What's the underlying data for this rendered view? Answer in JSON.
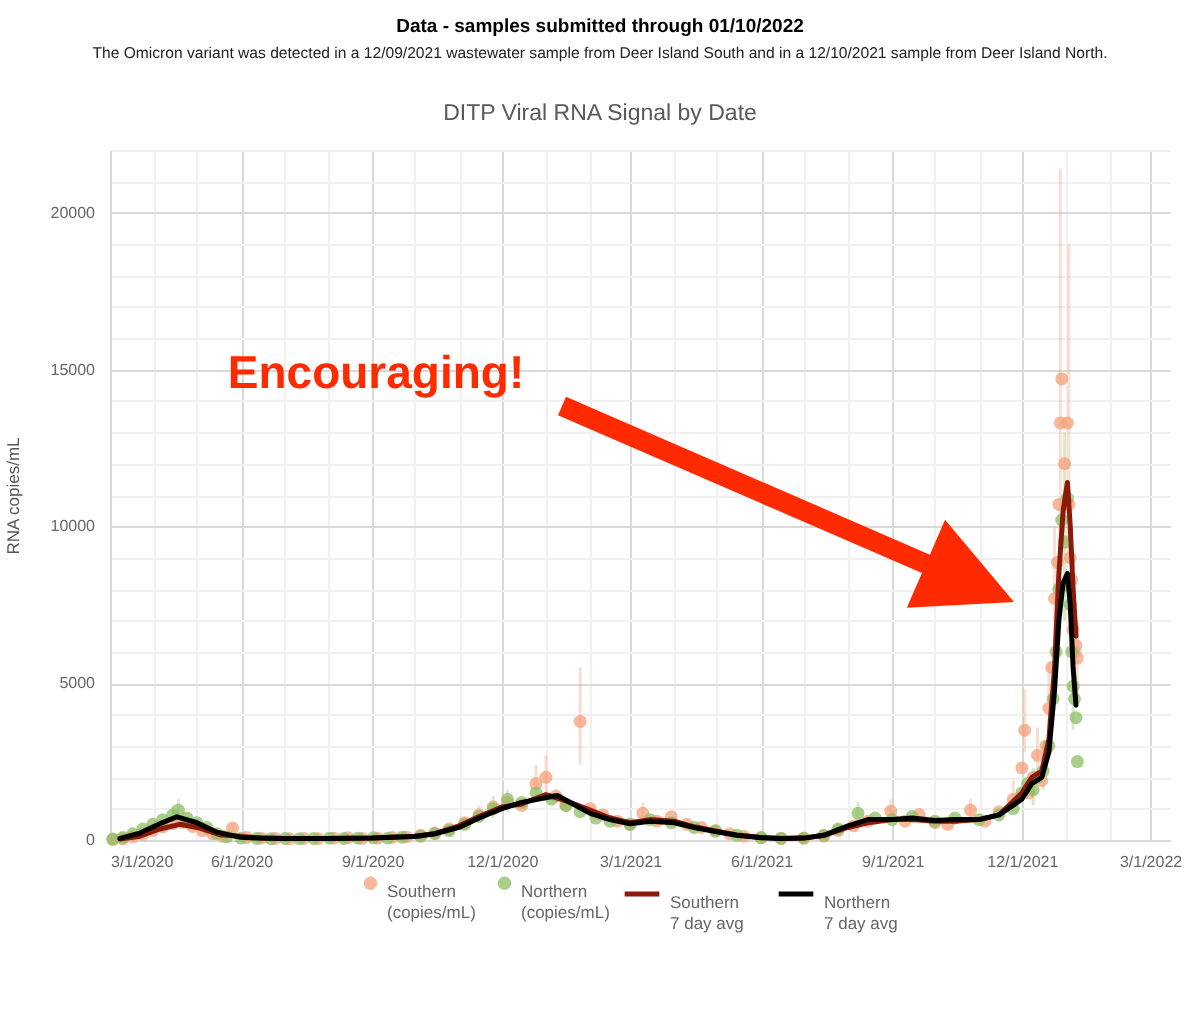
{
  "chart_data": {
    "type": "scatter",
    "title": "DITP Viral RNA Signal by Date",
    "ylabel": "RNA copies/mL",
    "annotations": [
      "Data - samples submitted through 01/10/2022",
      "The Omicron variant was detected in a 12/09/2021 wastewater sample from Deer Island South and in a 12/10/2021 sample from Deer Island North.",
      "Encouraging!"
    ],
    "xlim": [
      "2020-03-01",
      "2022-03-15"
    ],
    "xticks": [
      {
        "value": "2020-03-01",
        "label": "3/1/2020"
      },
      {
        "value": "2020-04-01",
        "label": null
      },
      {
        "value": "2020-05-01",
        "label": null
      },
      {
        "value": "2020-06-01",
        "label": "6/1/2020"
      },
      {
        "value": "2020-07-01",
        "label": null
      },
      {
        "value": "2020-08-01",
        "label": null
      },
      {
        "value": "2020-09-01",
        "label": "9/1/2020"
      },
      {
        "value": "2020-10-01",
        "label": null
      },
      {
        "value": "2020-11-01",
        "label": null
      },
      {
        "value": "2020-12-01",
        "label": "12/1/2020"
      },
      {
        "value": "2021-01-01",
        "label": null
      },
      {
        "value": "2021-02-01",
        "label": null
      },
      {
        "value": "2021-03-01",
        "label": "3/1/2021"
      },
      {
        "value": "2021-04-01",
        "label": null
      },
      {
        "value": "2021-05-01",
        "label": null
      },
      {
        "value": "2021-06-01",
        "label": "6/1/2021"
      },
      {
        "value": "2021-07-01",
        "label": null
      },
      {
        "value": "2021-08-01",
        "label": null
      },
      {
        "value": "2021-09-01",
        "label": "9/1/2021"
      },
      {
        "value": "2021-10-01",
        "label": null
      },
      {
        "value": "2021-11-01",
        "label": null
      },
      {
        "value": "2021-12-01",
        "label": "12/1/2021"
      },
      {
        "value": "2022-01-01",
        "label": null
      },
      {
        "value": "2022-02-01",
        "label": null
      },
      {
        "value": "2022-03-01",
        "label": "3/1/2022"
      }
    ],
    "ylim": [
      0,
      22000
    ],
    "yticks": [
      0,
      {
        "value": 1000,
        "label": null
      },
      {
        "value": 2000,
        "label": null
      },
      {
        "value": 3000,
        "label": null
      },
      {
        "value": 4000,
        "label": null
      },
      5000,
      {
        "value": 6000,
        "label": null
      },
      {
        "value": 7000,
        "label": null
      },
      {
        "value": 8000,
        "label": null
      },
      {
        "value": 9000,
        "label": null
      },
      10000,
      {
        "value": 11000,
        "label": null
      },
      {
        "value": 12000,
        "label": null
      },
      {
        "value": 13000,
        "label": null
      },
      {
        "value": 14000,
        "label": null
      },
      15000,
      {
        "value": 16000,
        "label": null
      },
      {
        "value": 17000,
        "label": null
      },
      {
        "value": 18000,
        "label": null
      },
      {
        "value": 19000,
        "label": null
      },
      20000,
      {
        "value": 21000,
        "label": null
      },
      {
        "value": 22000,
        "label": null
      }
    ],
    "grid": true,
    "legend": "bottom",
    "marker": "circle",
    "line_style": "solid",
    "series": [
      {
        "name": "Southern (copies/mL)",
        "color": "#f4a07a",
        "x": [
          "2020-03-03",
          "2020-03-10",
          "2020-03-17",
          "2020-03-24",
          "2020-03-31",
          "2020-04-07",
          "2020-04-14",
          "2020-04-21",
          "2020-04-28",
          "2020-05-05",
          "2020-05-12",
          "2020-05-19",
          "2020-05-26",
          "2020-06-05",
          "2020-06-15",
          "2020-06-25",
          "2020-07-05",
          "2020-07-15",
          "2020-07-25",
          "2020-08-05",
          "2020-08-15",
          "2020-08-25",
          "2020-09-05",
          "2020-09-15",
          "2020-09-25",
          "2020-10-05",
          "2020-10-15",
          "2020-10-25",
          "2020-11-05",
          "2020-11-15",
          "2020-11-25",
          "2020-12-05",
          "2020-12-15",
          "2020-12-25",
          "2021-01-01",
          "2021-01-08",
          "2021-01-15",
          "2021-01-25",
          "2021-02-01",
          "2021-02-10",
          "2021-02-20",
          "2021-03-01",
          "2021-03-10",
          "2021-03-20",
          "2021-03-30",
          "2021-04-10",
          "2021-04-20",
          "2021-04-30",
          "2021-05-10",
          "2021-05-20",
          "2021-06-01",
          "2021-06-15",
          "2021-07-01",
          "2021-07-15",
          "2021-07-25",
          "2021-08-05",
          "2021-08-15",
          "2021-08-31",
          "2021-09-10",
          "2021-09-20",
          "2021-10-01",
          "2021-10-10",
          "2021-10-26",
          "2021-11-05",
          "2021-11-15",
          "2021-11-25",
          "2021-12-01",
          "2021-12-03",
          "2021-12-06",
          "2021-12-09",
          "2021-12-12",
          "2021-12-15",
          "2021-12-18",
          "2021-12-20",
          "2021-12-22",
          "2021-12-24",
          "2021-12-26",
          "2021-12-27",
          "2021-12-28",
          "2021-12-29",
          "2021-12-31",
          "2022-01-02",
          "2022-01-03",
          "2022-01-04",
          "2022-01-05",
          "2022-01-06",
          "2022-01-07",
          "2022-01-08",
          "2022-01-09"
        ],
        "values": [
          20,
          40,
          100,
          180,
          300,
          420,
          520,
          560,
          430,
          300,
          200,
          120,
          380,
          80,
          60,
          50,
          40,
          50,
          40,
          60,
          70,
          50,
          60,
          80,
          100,
          150,
          220,
          350,
          550,
          800,
          1050,
          1200,
          1100,
          1800,
          2000,
          1400,
          1100,
          3780,
          1000,
          800,
          600,
          500,
          850,
          600,
          740,
          500,
          400,
          300,
          200,
          120,
          80,
          50,
          60,
          120,
          300,
          450,
          600,
          920,
          600,
          810,
          550,
          500,
          950,
          600,
          900,
          1300,
          2300,
          3500,
          1500,
          2000,
          2700,
          1900,
          3000,
          4200,
          5500,
          7700,
          8850,
          10700,
          13300,
          14700,
          12000,
          13300,
          10700,
          9000,
          8300,
          6700,
          6000,
          6200,
          5800
        ],
        "errors": [
          null,
          null,
          null,
          null,
          null,
          null,
          null,
          [
            380,
            750
          ],
          null,
          null,
          null,
          null,
          [
            220,
            520
          ],
          null,
          null,
          null,
          null,
          null,
          null,
          null,
          null,
          null,
          null,
          null,
          null,
          null,
          null,
          null,
          null,
          [
            600,
            1100
          ],
          null,
          [
            900,
            1600
          ],
          null,
          [
            1300,
            2400
          ],
          [
            1500,
            2700
          ],
          null,
          null,
          [
            2400,
            5500
          ],
          null,
          null,
          null,
          null,
          [
            600,
            1200
          ],
          null,
          null,
          null,
          null,
          null,
          null,
          null,
          null,
          null,
          null,
          null,
          null,
          null,
          null,
          [
            650,
            1300
          ],
          null,
          null,
          null,
          null,
          [
            700,
            1300
          ],
          null,
          null,
          [
            900,
            1900
          ],
          null,
          [
            2800,
            4800
          ],
          null,
          null,
          [
            2000,
            3600
          ],
          null,
          null,
          [
            3200,
            5600
          ],
          null,
          [
            5500,
            10000
          ],
          null,
          null,
          [
            8000,
            21400
          ],
          null,
          null,
          null,
          [
            9000,
            19000
          ],
          null,
          null,
          null,
          null,
          null,
          [
            4500,
            7000
          ]
        ]
      },
      {
        "name": "Northern (copies/mL)",
        "color": "#8cbf64",
        "x": [
          "2020-03-03",
          "2020-03-10",
          "2020-03-17",
          "2020-03-24",
          "2020-03-31",
          "2020-04-07",
          "2020-04-14",
          "2020-04-18",
          "2020-04-24",
          "2020-05-01",
          "2020-05-08",
          "2020-05-15",
          "2020-05-22",
          "2020-06-01",
          "2020-06-12",
          "2020-06-22",
          "2020-07-02",
          "2020-07-12",
          "2020-07-22",
          "2020-08-02",
          "2020-08-12",
          "2020-08-22",
          "2020-09-02",
          "2020-09-12",
          "2020-09-22",
          "2020-10-05",
          "2020-10-15",
          "2020-10-25",
          "2020-11-05",
          "2020-11-15",
          "2020-11-25",
          "2020-12-05",
          "2020-12-15",
          "2020-12-25",
          "2021-01-05",
          "2021-01-15",
          "2021-01-25",
          "2021-02-05",
          "2021-02-15",
          "2021-03-01",
          "2021-03-15",
          "2021-03-30",
          "2021-04-15",
          "2021-04-30",
          "2021-05-15",
          "2021-06-01",
          "2021-06-15",
          "2021-07-01",
          "2021-07-15",
          "2021-07-25",
          "2021-08-08",
          "2021-08-20",
          "2021-09-01",
          "2021-09-15",
          "2021-10-01",
          "2021-10-15",
          "2021-11-01",
          "2021-11-15",
          "2021-11-25",
          "2021-12-01",
          "2021-12-05",
          "2021-12-09",
          "2021-12-12",
          "2021-12-16",
          "2021-12-20",
          "2021-12-23",
          "2021-12-25",
          "2021-12-27",
          "2021-12-29",
          "2021-12-31",
          "2022-01-02",
          "2022-01-03",
          "2022-01-04",
          "2022-01-05",
          "2022-01-06",
          "2022-01-07",
          "2022-01-08",
          "2022-01-09"
        ],
        "values": [
          30,
          80,
          200,
          350,
          500,
          650,
          800,
          950,
          700,
          550,
          400,
          200,
          100,
          60,
          50,
          40,
          50,
          40,
          50,
          60,
          50,
          60,
          70,
          60,
          90,
          120,
          200,
          300,
          500,
          750,
          1000,
          1300,
          1200,
          1500,
          1300,
          1100,
          900,
          700,
          600,
          500,
          650,
          550,
          400,
          280,
          150,
          70,
          50,
          60,
          150,
          350,
          850,
          700,
          650,
          750,
          600,
          700,
          650,
          800,
          1000,
          1500,
          1800,
          1600,
          2000,
          2200,
          3000,
          4500,
          6000,
          8000,
          10200,
          9500,
          10900,
          8100,
          7500,
          6000,
          4900,
          4500,
          3900,
          2500
        ],
        "errors": [
          null,
          null,
          null,
          null,
          null,
          null,
          [
            550,
            1100
          ],
          [
            650,
            1300
          ],
          null,
          null,
          null,
          null,
          null,
          null,
          null,
          null,
          null,
          null,
          null,
          null,
          null,
          null,
          null,
          null,
          null,
          null,
          null,
          null,
          null,
          null,
          [
            700,
            1400
          ],
          null,
          null,
          null,
          null,
          null,
          null,
          null,
          null,
          null,
          null,
          null,
          null,
          null,
          null,
          null,
          null,
          null,
          null,
          null,
          [
            600,
            1200
          ],
          null,
          null,
          null,
          null,
          null,
          null,
          null,
          null,
          null,
          null,
          [
            1100,
            2300
          ],
          null,
          [
            1600,
            3000
          ],
          null,
          null,
          null,
          null,
          null,
          [
            7000,
            13000
          ],
          null,
          null,
          null,
          null,
          [
            3500,
            6500
          ],
          null,
          null,
          null
        ]
      },
      {
        "name": "Southern 7 day avg",
        "type": "line",
        "marker": "none",
        "color": "#8b1a0a",
        "x": [
          "2020-03-08",
          "2020-03-22",
          "2020-04-05",
          "2020-04-19",
          "2020-05-03",
          "2020-05-17",
          "2020-05-31",
          "2020-06-14",
          "2020-07-01",
          "2020-08-01",
          "2020-09-01",
          "2020-10-01",
          "2020-10-15",
          "2020-11-01",
          "2020-11-15",
          "2020-12-01",
          "2020-12-15",
          "2021-01-01",
          "2021-01-15",
          "2021-02-01",
          "2021-02-15",
          "2021-03-01",
          "2021-03-15",
          "2021-04-01",
          "2021-04-15",
          "2021-05-01",
          "2021-05-15",
          "2021-06-01",
          "2021-06-15",
          "2021-07-01",
          "2021-07-15",
          "2021-08-01",
          "2021-08-15",
          "2021-09-01",
          "2021-09-15",
          "2021-10-01",
          "2021-10-15",
          "2021-11-01",
          "2021-11-15",
          "2021-12-01",
          "2021-12-08",
          "2021-12-15",
          "2021-12-20",
          "2021-12-24",
          "2021-12-27",
          "2021-12-30",
          "2022-01-02",
          "2022-01-04",
          "2022-01-06",
          "2022-01-08"
        ],
        "values": [
          30,
          120,
          350,
          500,
          380,
          170,
          120,
          60,
          50,
          50,
          60,
          120,
          200,
          450,
          750,
          1050,
          1150,
          1450,
          1250,
          950,
          700,
          550,
          650,
          600,
          420,
          280,
          160,
          80,
          50,
          60,
          150,
          400,
          550,
          650,
          650,
          600,
          600,
          650,
          800,
          1500,
          2000,
          2200,
          3200,
          5500,
          8500,
          10500,
          11400,
          10000,
          8000,
          6500
        ]
      },
      {
        "name": "Northern 7 day avg",
        "type": "line",
        "marker": "none",
        "color": "#000000",
        "x": [
          "2020-03-08",
          "2020-03-22",
          "2020-04-05",
          "2020-04-17",
          "2020-05-01",
          "2020-05-15",
          "2020-05-31",
          "2020-06-14",
          "2020-07-01",
          "2020-08-01",
          "2020-09-01",
          "2020-10-01",
          "2020-10-15",
          "2020-11-01",
          "2020-11-15",
          "2020-12-01",
          "2020-12-15",
          "2021-01-09",
          "2021-01-20",
          "2021-02-01",
          "2021-02-15",
          "2021-03-01",
          "2021-03-15",
          "2021-04-01",
          "2021-04-15",
          "2021-05-01",
          "2021-05-15",
          "2021-06-01",
          "2021-06-15",
          "2021-07-01",
          "2021-07-15",
          "2021-08-01",
          "2021-08-15",
          "2021-09-01",
          "2021-09-15",
          "2021-10-01",
          "2021-10-15",
          "2021-11-01",
          "2021-11-15",
          "2021-12-01",
          "2021-12-08",
          "2021-12-15",
          "2021-12-20",
          "2021-12-24",
          "2021-12-27",
          "2021-12-30",
          "2022-01-02",
          "2022-01-04",
          "2022-01-06",
          "2022-01-08"
        ],
        "values": [
          50,
          220,
          520,
          740,
          550,
          250,
          90,
          60,
          50,
          50,
          60,
          110,
          200,
          400,
          700,
          1000,
          1200,
          1420,
          1150,
          850,
          650,
          520,
          600,
          550,
          400,
          260,
          150,
          70,
          50,
          60,
          150,
          450,
          650,
          650,
          700,
          620,
          650,
          650,
          800,
          1300,
          1800,
          2000,
          2800,
          4800,
          7000,
          8200,
          8500,
          7500,
          5500,
          4300
        ]
      }
    ]
  }
}
